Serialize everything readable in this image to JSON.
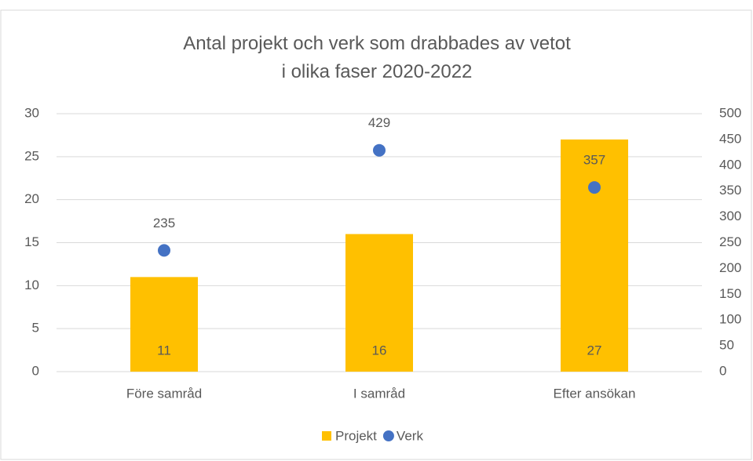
{
  "chart_data": {
    "type": "bar",
    "title": "Antal projekt och verk som drabbades av vetot i olika faser 2020-2022",
    "categories": [
      "Före samråd",
      "I samråd",
      "Efter ansökan"
    ],
    "series": [
      {
        "name": "Projekt",
        "type": "bar",
        "color": "#ffc000",
        "values": [
          11,
          16,
          27
        ]
      },
      {
        "name": "Verk",
        "type": "scatter",
        "color": "#4472c4",
        "axis": "y2",
        "values": [
          235,
          429,
          357
        ]
      }
    ],
    "ylim": [
      0,
      30
    ],
    "yticks": [
      0,
      5,
      10,
      15,
      20,
      25,
      30
    ],
    "y2lim": [
      0,
      500
    ],
    "y2ticks": [
      0,
      50,
      100,
      150,
      200,
      250,
      300,
      350,
      400,
      450,
      500
    ],
    "grid": true,
    "legend": "bottom"
  }
}
